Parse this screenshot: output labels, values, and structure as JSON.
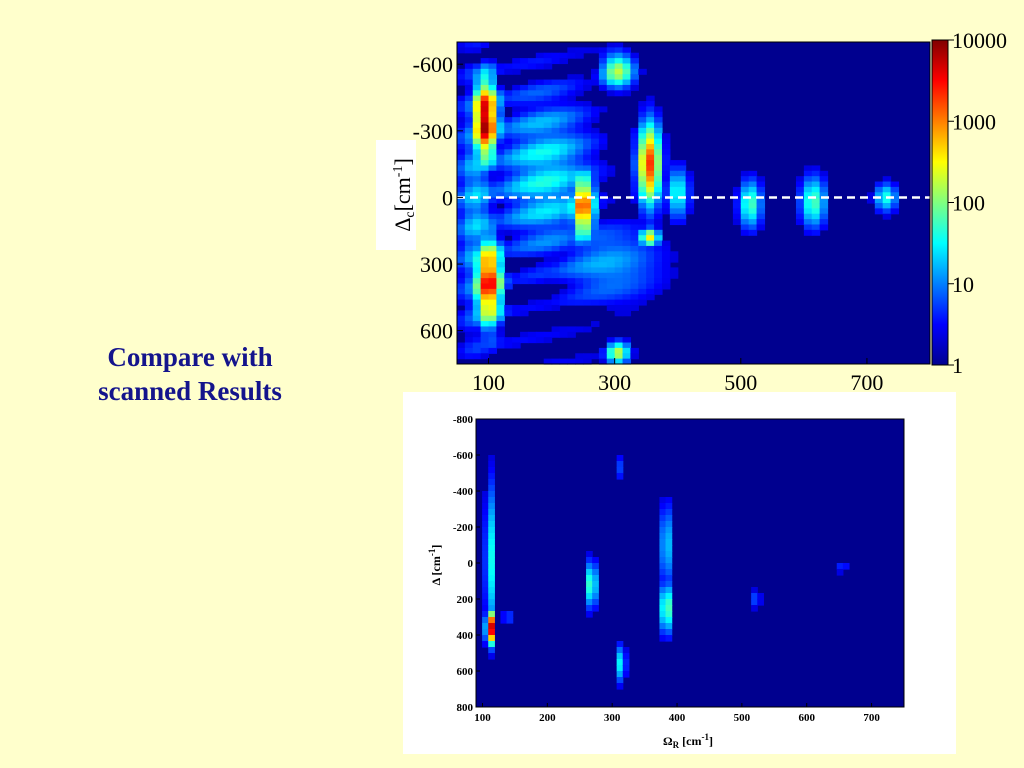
{
  "caption": {
    "line1": "Compare with",
    "line2": "scanned Results"
  },
  "colors": {
    "background": "#ffffcc",
    "caption": "#14148c",
    "field": "#00008f",
    "dash": "#ffffff"
  },
  "chart_data": [
    {
      "type": "heatmap",
      "title": "",
      "colormap": "jet",
      "xlim": [
        50,
        800
      ],
      "ylim": [
        -700,
        750
      ],
      "x_ticks": [
        "100",
        "300",
        "500",
        "700"
      ],
      "x_tick_values": [
        100,
        300,
        500,
        700
      ],
      "y_ticks": [
        "-600",
        "-300",
        "0",
        "300",
        "600"
      ],
      "y_tick_values": [
        -600,
        -300,
        0,
        300,
        600
      ],
      "ylabel": {
        "symbol": "Δ",
        "sub": "c",
        "unit": "[cm",
        "sup": "-1",
        "close": "]"
      },
      "reference_line_y": 0,
      "colorbar": {
        "ticks": [
          "10000",
          "1000",
          "100",
          "10",
          "1"
        ],
        "values": [
          10000,
          1000,
          100,
          10,
          1
        ],
        "scale": "log"
      },
      "blobs": [
        {
          "x": 95,
          "y": -350,
          "sx": 15,
          "sy": 140,
          "level": 0.97
        },
        {
          "x": 100,
          "y": 380,
          "sx": 16,
          "sy": 150,
          "level": 0.88
        },
        {
          "x": 250,
          "y": 40,
          "sx": 14,
          "sy": 110,
          "level": 0.8
        },
        {
          "x": 355,
          "y": -150,
          "sx": 14,
          "sy": 140,
          "level": 0.82
        },
        {
          "x": 305,
          "y": -570,
          "sx": 20,
          "sy": 60,
          "level": 0.55
        },
        {
          "x": 355,
          "y": 180,
          "sx": 12,
          "sy": 30,
          "level": 0.65
        },
        {
          "x": 305,
          "y": 700,
          "sx": 14,
          "sy": 40,
          "level": 0.55
        },
        {
          "x": 400,
          "y": -20,
          "sx": 14,
          "sy": 90,
          "level": 0.4
        },
        {
          "x": 515,
          "y": 30,
          "sx": 14,
          "sy": 85,
          "level": 0.45
        },
        {
          "x": 615,
          "y": 20,
          "sx": 16,
          "sy": 90,
          "level": 0.45
        },
        {
          "x": 730,
          "y": 0,
          "sx": 14,
          "sy": 50,
          "level": 0.4
        },
        {
          "x": 190,
          "y": -100,
          "sx": 60,
          "sy": 300,
          "level": 0.35
        },
        {
          "x": 80,
          "y": 50,
          "sx": 25,
          "sy": 500,
          "level": 0.3
        },
        {
          "x": 290,
          "y": 300,
          "sx": 70,
          "sy": 150,
          "level": 0.28
        }
      ]
    },
    {
      "type": "heatmap",
      "title": "",
      "colormap": "jet",
      "xlim": [
        90,
        750
      ],
      "ylim": [
        -800,
        800
      ],
      "x_ticks": [
        "100",
        "200",
        "300",
        "400",
        "500",
        "600",
        "700"
      ],
      "x_tick_values": [
        100,
        200,
        300,
        400,
        500,
        600,
        700
      ],
      "y_ticks": [
        "-800",
        "-600",
        "-400",
        "-200",
        "0",
        "200",
        "400",
        "600",
        "800"
      ],
      "y_tick_values": [
        -800,
        -600,
        -400,
        -200,
        0,
        200,
        400,
        600,
        800
      ],
      "xlabel": {
        "symbol": "Ω",
        "sub": "R",
        "unit": " [cm",
        "sup": "-1",
        "close": "]"
      },
      "ylabel": {
        "symbol": "Δ",
        "sub": "",
        "unit": " [cm",
        "sup": "-1",
        "close": "]"
      },
      "blobs": [
        {
          "x": 112,
          "y": 360,
          "sx": 5,
          "sy": 70,
          "level": 0.97
        },
        {
          "x": 112,
          "y": -20,
          "sx": 6,
          "sy": 330,
          "level": 0.4
        },
        {
          "x": 268,
          "y": 120,
          "sx": 6,
          "sy": 100,
          "level": 0.5
        },
        {
          "x": 383,
          "y": 250,
          "sx": 6,
          "sy": 110,
          "level": 0.55
        },
        {
          "x": 383,
          "y": -100,
          "sx": 6,
          "sy": 180,
          "level": 0.38
        },
        {
          "x": 313,
          "y": 560,
          "sx": 6,
          "sy": 80,
          "level": 0.38
        },
        {
          "x": 313,
          "y": -530,
          "sx": 4,
          "sy": 60,
          "level": 0.2
        },
        {
          "x": 520,
          "y": 200,
          "sx": 8,
          "sy": 40,
          "level": 0.2
        },
        {
          "x": 655,
          "y": 20,
          "sx": 7,
          "sy": 30,
          "level": 0.18
        },
        {
          "x": 140,
          "y": 300,
          "sx": 10,
          "sy": 40,
          "level": 0.18
        }
      ]
    }
  ]
}
